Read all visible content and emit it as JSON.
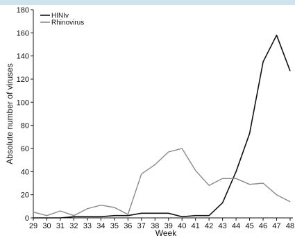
{
  "chart_data": {
    "type": "line",
    "xlabel": "Week",
    "ylabel": "Absolute number of viruses",
    "x": [
      29,
      30,
      31,
      32,
      33,
      34,
      35,
      36,
      37,
      38,
      39,
      40,
      41,
      42,
      43,
      44,
      45,
      46,
      47,
      48
    ],
    "ylim": [
      0,
      180
    ],
    "yticks": [
      0,
      20,
      40,
      60,
      80,
      100,
      120,
      140,
      160,
      180
    ],
    "legend_position": "top-left",
    "grid": false,
    "series": [
      {
        "name": "HINIv",
        "color": "#111111",
        "values": [
          0,
          0,
          0,
          1,
          1,
          1,
          2,
          2,
          4,
          4,
          4,
          1,
          2,
          2,
          13,
          40,
          73,
          135,
          158,
          127
        ]
      },
      {
        "name": "Rhinovirus",
        "color": "#8a8a8a",
        "values": [
          5,
          2,
          6,
          2,
          8,
          11,
          9,
          3,
          38,
          46,
          57,
          60,
          41,
          28,
          34,
          34,
          29,
          30,
          20,
          14
        ]
      }
    ]
  }
}
